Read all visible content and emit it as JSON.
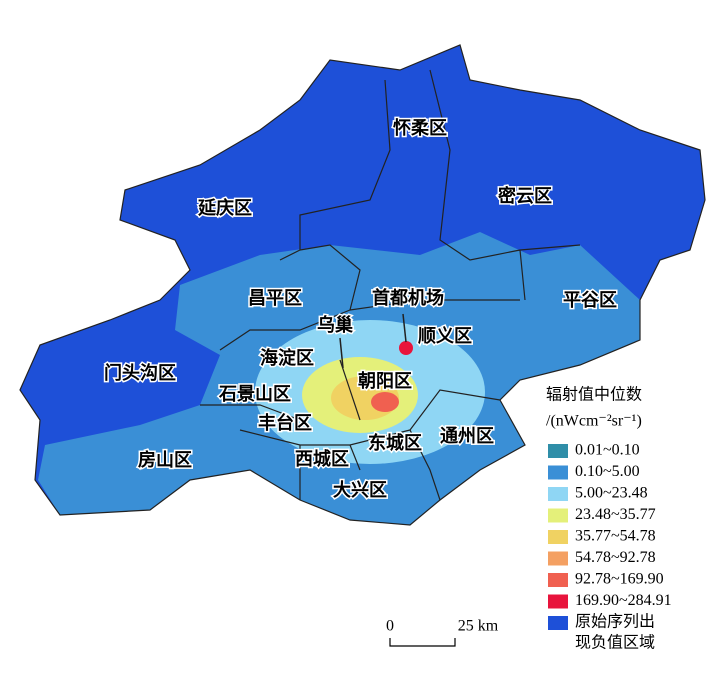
{
  "map": {
    "districts": [
      "怀柔区",
      "密云区",
      "延庆区",
      "昌平区",
      "平谷区",
      "顺义区",
      "海淀区",
      "门头沟区",
      "朝阳区",
      "石景山区",
      "丰台区",
      "东城区",
      "通州区",
      "西城区",
      "房山区",
      "大兴区"
    ],
    "annotations": [
      "首都机场",
      "乌巢"
    ]
  },
  "legend": {
    "title": "辐射值中位数",
    "unit": "/(nWcm⁻²sr⁻¹)",
    "items": [
      {
        "label": [
          "0.01~0.10"
        ],
        "color": "#2f8ea8"
      },
      {
        "label": [
          "0.10~5.00"
        ],
        "color": "#3a8fd6"
      },
      {
        "label": [
          "5.00~23.48"
        ],
        "color": "#8fd6f4"
      },
      {
        "label": [
          "23.48~35.77"
        ],
        "color": "#e4f07a"
      },
      {
        "label": [
          "35.77~54.78"
        ],
        "color": "#f0d262"
      },
      {
        "label": [
          "54.78~92.78"
        ],
        "color": "#f4a062"
      },
      {
        "label": [
          "92.78~169.90"
        ],
        "color": "#f06050"
      },
      {
        "label": [
          "169.90~284.91"
        ],
        "color": "#e8143c"
      },
      {
        "label": [
          "原始序列出",
          "现负值区域"
        ],
        "color": "#1e50d8"
      }
    ]
  },
  "scale_bar": {
    "labels": [
      "0",
      "25 km"
    ]
  }
}
